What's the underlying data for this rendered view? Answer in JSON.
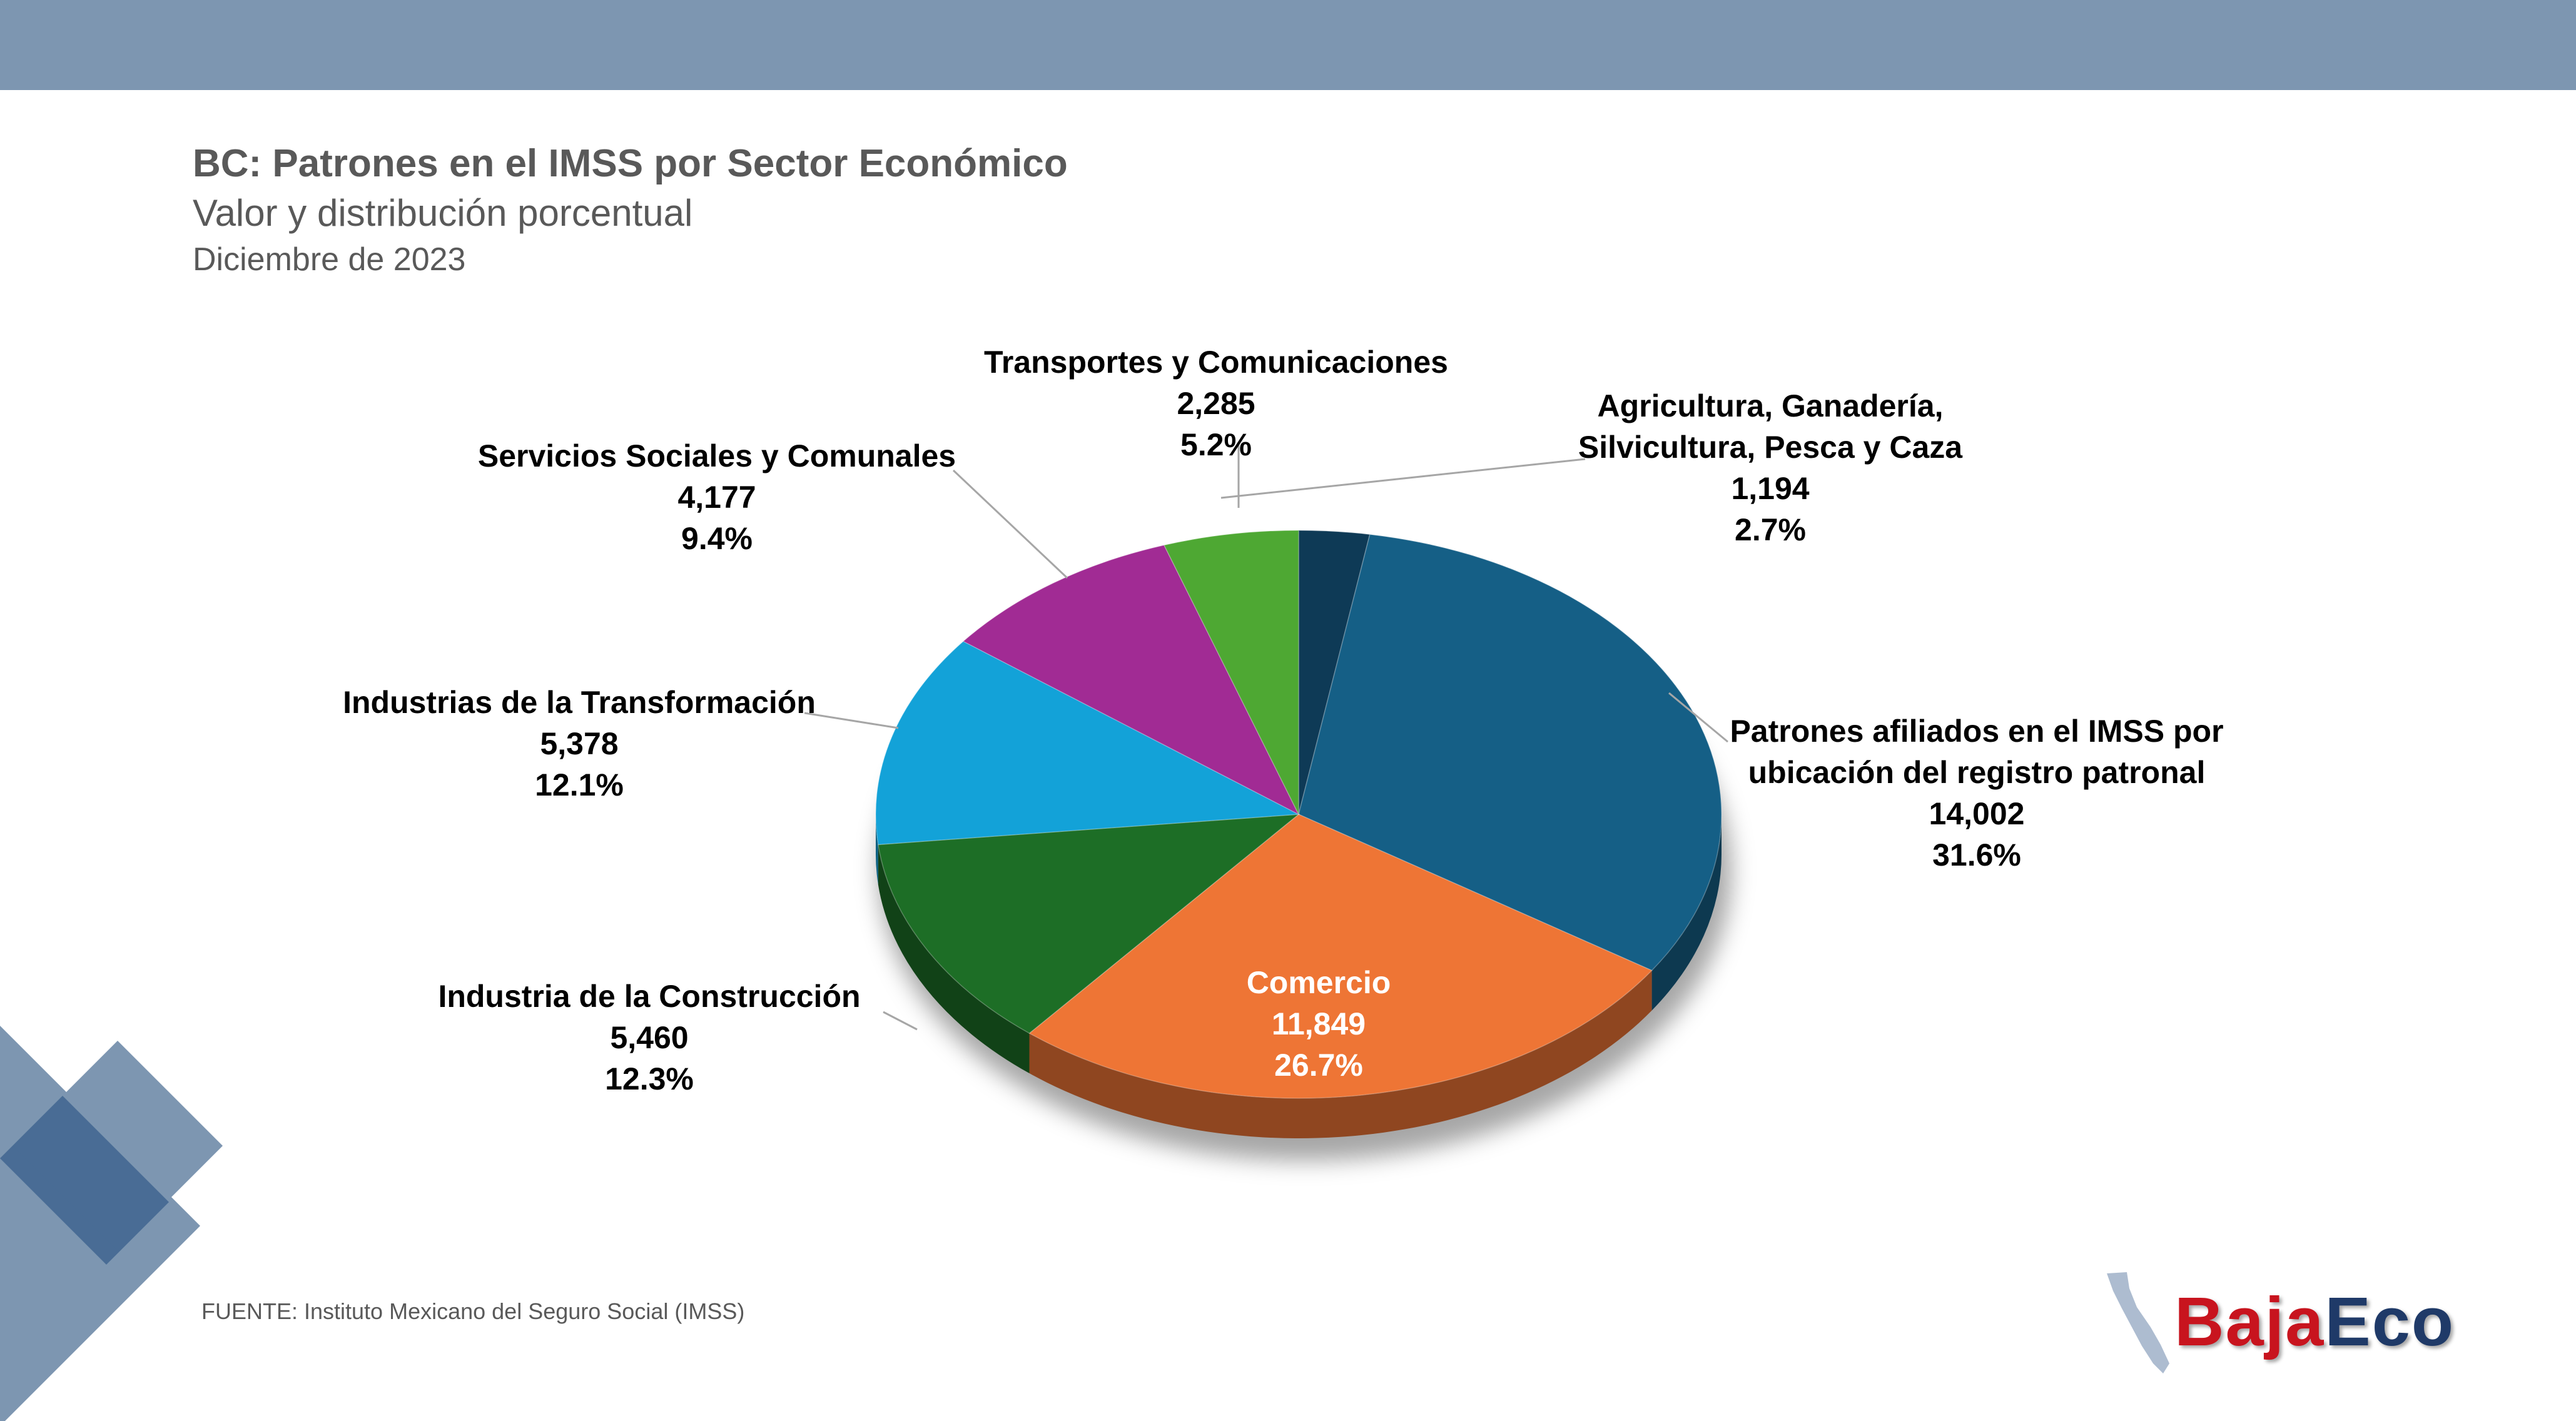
{
  "header": {
    "title": "BC: Patrones en el IMSS por Sector Económico",
    "subtitle": "Valor y distribución porcentual",
    "date": "Diciembre de 2023"
  },
  "colors": {
    "band": "#7d96b1",
    "decor_light": "#7d96b1",
    "decor_dark": "#3f6590",
    "label_text": "#000000",
    "inner_label_text": "#ffffff"
  },
  "chart_data": {
    "type": "pie",
    "title": "BC: Patrones en el IMSS por Sector Económico",
    "slices": [
      {
        "name": "Agricultura, Ganadería, Silvicultura, Pesca y Caza",
        "lines": [
          "Agricultura, Ganadería,",
          "Silvicultura, Pesca y Caza"
        ],
        "value": 1194,
        "value_label": "1,194",
        "percent_label": "2.7%",
        "color": "#0e3a56"
      },
      {
        "name": "Patrones afiliados en el IMSS por ubicación del registro patronal",
        "lines": [
          "Patrones afiliados en el IMSS por",
          "ubicación del registro patronal"
        ],
        "value": 14002,
        "value_label": "14,002",
        "percent_label": "31.6%",
        "color": "#155f86"
      },
      {
        "name": "Comercio",
        "lines": [
          "Comercio"
        ],
        "value": 11849,
        "value_label": "11,849",
        "percent_label": "26.7%",
        "color": "#ee7535"
      },
      {
        "name": "Industria de la Construcción",
        "lines": [
          "Industria de la Construcción"
        ],
        "value": 5460,
        "value_label": "5,460",
        "percent_label": "12.3%",
        "color": "#1d6e26"
      },
      {
        "name": "Industrias de la Transformación",
        "lines": [
          "Industrias de la Transformación"
        ],
        "value": 5378,
        "value_label": "5,378",
        "percent_label": "12.1%",
        "color": "#13a2d8"
      },
      {
        "name": "Servicios Sociales y Comunales",
        "lines": [
          "Servicios Sociales y Comunales"
        ],
        "value": 4177,
        "value_label": "4,177",
        "percent_label": "9.4%",
        "color": "#a12b94"
      },
      {
        "name": "Transportes y Comunicaciones",
        "lines": [
          "Transportes y Comunicaciones"
        ],
        "value": 2285,
        "value_label": "2,285",
        "percent_label": "5.2%",
        "color": "#4ea833"
      }
    ],
    "inside_label_slice": "Comercio",
    "start": "12 o'clock",
    "direction": "clockwise",
    "style": "3D tilted pie"
  },
  "footer": {
    "source": "FUENTE: Instituto Mexicano del Seguro Social (IMSS)"
  },
  "logo": {
    "part1": "Baja",
    "part2": "Eco"
  }
}
